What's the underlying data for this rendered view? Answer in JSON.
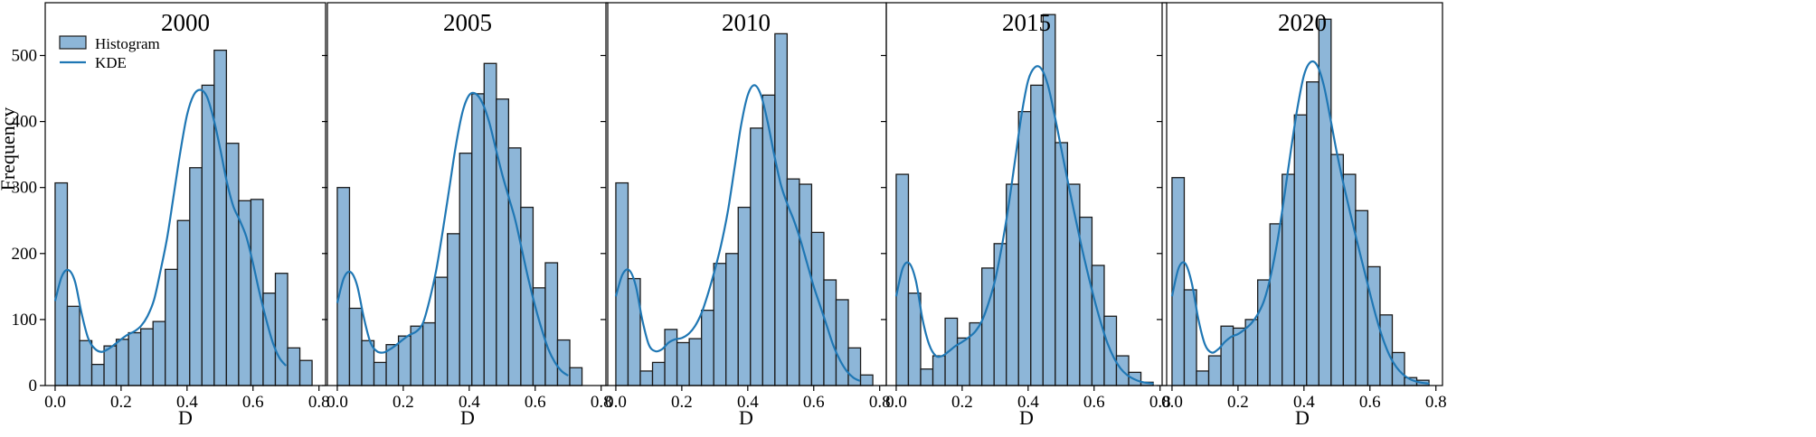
{
  "chart_data": {
    "type": "bar",
    "subtype": "histogram-with-kde",
    "ylabel": "Frequency",
    "xlabel": "D",
    "x_ticks": [
      "0.0",
      "0.2",
      "0.4",
      "0.6",
      "0.8"
    ],
    "y_ticks": [
      "0",
      "100",
      "200",
      "300",
      "400",
      "500"
    ],
    "xlim": [
      -0.03,
      0.82
    ],
    "ylim": [
      0,
      580
    ],
    "bin_width": 0.0371,
    "colors": {
      "bar_fill": "#8db6d8",
      "bar_edge": "#1a1a1a",
      "kde_line": "#1f77b4"
    },
    "legend": {
      "position": "top-left",
      "entries": [
        "Histogram",
        "KDE"
      ]
    },
    "grid": false,
    "panels": [
      {
        "title": "2000",
        "bins_start": 0.0,
        "counts": [
          307,
          120,
          68,
          32,
          60,
          70,
          80,
          86,
          97,
          176,
          250,
          330,
          455,
          508,
          367,
          280,
          282,
          140,
          170,
          57,
          38
        ],
        "kde_x": [
          0.0,
          0.02,
          0.04,
          0.06,
          0.08,
          0.1,
          0.12,
          0.14,
          0.16,
          0.18,
          0.2,
          0.22,
          0.24,
          0.26,
          0.28,
          0.3,
          0.32,
          0.34,
          0.36,
          0.38,
          0.4,
          0.42,
          0.44,
          0.46,
          0.48,
          0.5,
          0.52,
          0.54,
          0.56,
          0.58,
          0.6,
          0.62,
          0.64,
          0.66,
          0.68,
          0.7
        ],
        "kde_y": [
          128,
          165,
          175,
          158,
          110,
          72,
          56,
          51,
          55,
          62,
          70,
          77,
          82,
          90,
          105,
          130,
          175,
          225,
          290,
          355,
          410,
          440,
          448,
          438,
          405,
          360,
          310,
          272,
          250,
          225,
          185,
          140,
          100,
          65,
          42,
          30
        ]
      },
      {
        "title": "2005",
        "bins_start": 0.0,
        "counts": [
          300,
          117,
          68,
          35,
          62,
          75,
          90,
          95,
          164,
          230,
          352,
          442,
          488,
          434,
          360,
          270,
          148,
          186,
          69,
          27
        ],
        "kde_x": [
          0.0,
          0.02,
          0.04,
          0.06,
          0.08,
          0.1,
          0.12,
          0.14,
          0.16,
          0.18,
          0.2,
          0.22,
          0.24,
          0.26,
          0.28,
          0.3,
          0.32,
          0.34,
          0.36,
          0.38,
          0.4,
          0.42,
          0.44,
          0.46,
          0.48,
          0.5,
          0.52,
          0.54,
          0.56,
          0.58,
          0.6,
          0.62,
          0.64,
          0.66,
          0.68,
          0.7
        ],
        "kde_y": [
          125,
          163,
          172,
          152,
          104,
          66,
          52,
          50,
          55,
          62,
          70,
          77,
          82,
          95,
          130,
          175,
          235,
          300,
          365,
          415,
          440,
          442,
          428,
          400,
          360,
          320,
          285,
          250,
          205,
          160,
          120,
          85,
          55,
          35,
          22,
          15
        ]
      },
      {
        "title": "2010",
        "bins_start": 0.0,
        "counts": [
          307,
          162,
          22,
          35,
          85,
          65,
          71,
          114,
          185,
          200,
          270,
          390,
          440,
          533,
          313,
          305,
          232,
          160,
          130,
          57,
          16
        ],
        "kde_x": [
          0.0,
          0.02,
          0.04,
          0.06,
          0.08,
          0.1,
          0.12,
          0.14,
          0.16,
          0.18,
          0.2,
          0.22,
          0.24,
          0.26,
          0.28,
          0.3,
          0.32,
          0.34,
          0.36,
          0.38,
          0.4,
          0.42,
          0.44,
          0.46,
          0.48,
          0.5,
          0.52,
          0.54,
          0.56,
          0.58,
          0.6,
          0.62,
          0.64,
          0.66,
          0.68,
          0.7,
          0.72,
          0.74
        ],
        "kde_y": [
          135,
          168,
          175,
          152,
          100,
          62,
          52,
          55,
          65,
          70,
          72,
          78,
          90,
          110,
          140,
          175,
          215,
          265,
          330,
          395,
          440,
          455,
          440,
          400,
          350,
          305,
          275,
          250,
          220,
          185,
          150,
          120,
          90,
          60,
          38,
          22,
          12,
          7
        ]
      },
      {
        "title": "2015",
        "bins_start": 0.0,
        "counts": [
          320,
          140,
          25,
          45,
          102,
          72,
          95,
          178,
          215,
          305,
          415,
          455,
          562,
          368,
          305,
          255,
          182,
          105,
          45,
          20,
          5
        ],
        "kde_x": [
          0.0,
          0.02,
          0.04,
          0.06,
          0.08,
          0.1,
          0.12,
          0.14,
          0.16,
          0.18,
          0.2,
          0.22,
          0.24,
          0.26,
          0.28,
          0.3,
          0.32,
          0.34,
          0.36,
          0.38,
          0.4,
          0.42,
          0.44,
          0.46,
          0.48,
          0.5,
          0.52,
          0.54,
          0.56,
          0.58,
          0.6,
          0.62,
          0.64,
          0.66,
          0.68,
          0.7,
          0.72,
          0.74,
          0.76,
          0.78
        ],
        "kde_y": [
          135,
          178,
          185,
          158,
          100,
          62,
          45,
          45,
          52,
          60,
          66,
          73,
          82,
          98,
          125,
          160,
          210,
          270,
          340,
          410,
          462,
          482,
          480,
          455,
          410,
          360,
          310,
          262,
          215,
          172,
          132,
          96,
          65,
          42,
          26,
          16,
          10,
          6,
          4,
          3
        ]
      },
      {
        "title": "2020",
        "bins_start": 0.0,
        "counts": [
          315,
          145,
          22,
          45,
          90,
          87,
          100,
          160,
          245,
          320,
          410,
          460,
          555,
          350,
          320,
          265,
          180,
          107,
          50,
          12,
          8
        ],
        "kde_x": [
          0.0,
          0.02,
          0.04,
          0.06,
          0.08,
          0.1,
          0.12,
          0.14,
          0.16,
          0.18,
          0.2,
          0.22,
          0.24,
          0.26,
          0.28,
          0.3,
          0.32,
          0.34,
          0.36,
          0.38,
          0.4,
          0.42,
          0.44,
          0.46,
          0.48,
          0.5,
          0.52,
          0.54,
          0.56,
          0.58,
          0.6,
          0.62,
          0.64,
          0.66,
          0.68,
          0.7,
          0.72,
          0.74,
          0.76,
          0.78
        ],
        "kde_y": [
          135,
          178,
          185,
          155,
          100,
          62,
          50,
          55,
          66,
          74,
          78,
          85,
          94,
          108,
          130,
          168,
          220,
          285,
          355,
          420,
          470,
          490,
          485,
          455,
          405,
          352,
          305,
          262,
          220,
          180,
          140,
          102,
          70,
          45,
          28,
          17,
          10,
          6,
          4,
          3
        ]
      }
    ]
  }
}
